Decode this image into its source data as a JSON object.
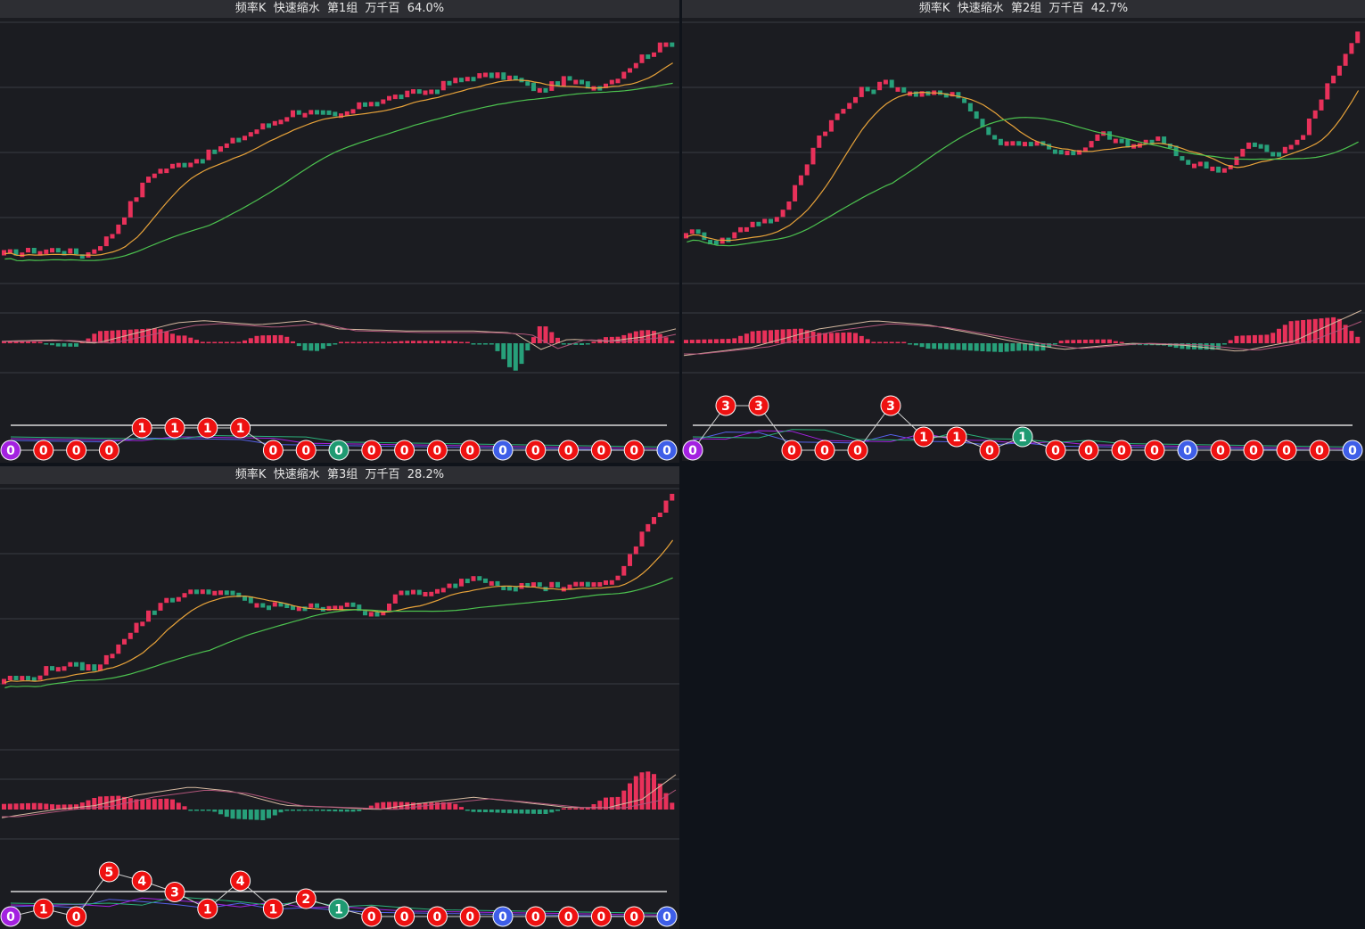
{
  "theme": {
    "panel_bg": "#1b1c21",
    "title_bg": "#2d2e33",
    "up_color": "#e8315a",
    "down_color": "#27a07a",
    "ma_short_color": "#e8a33a",
    "ma_long_color": "#4cc24f",
    "macd_line1": "#d4b8a0",
    "macd_line2": "#b0557a",
    "baseline_color": "#ffffff",
    "grid_color": "#3a3b42",
    "circle_colors": {
      "red": "#ee1111",
      "green": "#1f9a72",
      "blue": "#3e5ee8",
      "purple": "#a321e0"
    }
  },
  "panels": [
    {
      "title": "频率K  快速缩水  第1组  万千百  64.0%",
      "chart_data": {
        "type": "candlestick",
        "trend": [
          [
            0,
            0.1
          ],
          [
            0.08,
            0.12
          ],
          [
            0.12,
            0.09
          ],
          [
            0.16,
            0.18
          ],
          [
            0.22,
            0.45
          ],
          [
            0.3,
            0.52
          ],
          [
            0.38,
            0.64
          ],
          [
            0.44,
            0.72
          ],
          [
            0.5,
            0.69
          ],
          [
            0.55,
            0.76
          ],
          [
            0.63,
            0.8
          ],
          [
            0.7,
            0.87
          ],
          [
            0.76,
            0.86
          ],
          [
            0.8,
            0.8
          ],
          [
            0.84,
            0.85
          ],
          [
            0.88,
            0.82
          ],
          [
            0.91,
            0.85
          ],
          [
            0.96,
            0.96
          ],
          [
            1.0,
            1.02
          ]
        ],
        "macd_shape": [
          [
            0,
            0.05
          ],
          [
            0.08,
            0.08
          ],
          [
            0.14,
            0.0
          ],
          [
            0.2,
            0.25
          ],
          [
            0.26,
            0.5
          ],
          [
            0.3,
            0.55
          ],
          [
            0.38,
            0.45
          ],
          [
            0.45,
            0.55
          ],
          [
            0.5,
            0.35
          ],
          [
            0.6,
            0.3
          ],
          [
            0.7,
            0.3
          ],
          [
            0.76,
            0.25
          ],
          [
            0.8,
            -0.15
          ],
          [
            0.84,
            0.1
          ],
          [
            0.9,
            0.05
          ],
          [
            0.95,
            0.15
          ],
          [
            1.0,
            0.35
          ]
        ],
        "circles": [
          {
            "label": "0",
            "color": "purple",
            "level": 0
          },
          {
            "label": "0",
            "color": "red",
            "level": 0
          },
          {
            "label": "0",
            "color": "red",
            "level": 0
          },
          {
            "label": "0",
            "color": "red",
            "level": 0
          },
          {
            "label": "1",
            "color": "red",
            "level": 1
          },
          {
            "label": "1",
            "color": "red",
            "level": 1
          },
          {
            "label": "1",
            "color": "red",
            "level": 1
          },
          {
            "label": "1",
            "color": "red",
            "level": 1
          },
          {
            "label": "0",
            "color": "red",
            "level": 0
          },
          {
            "label": "0",
            "color": "red",
            "level": 0
          },
          {
            "label": "0",
            "color": "green",
            "level": 0
          },
          {
            "label": "0",
            "color": "red",
            "level": 0
          },
          {
            "label": "0",
            "color": "red",
            "level": 0
          },
          {
            "label": "0",
            "color": "red",
            "level": 0
          },
          {
            "label": "0",
            "color": "red",
            "level": 0
          },
          {
            "label": "0",
            "color": "blue",
            "level": 0
          },
          {
            "label": "0",
            "color": "red",
            "level": 0
          },
          {
            "label": "0",
            "color": "red",
            "level": 0
          },
          {
            "label": "0",
            "color": "red",
            "level": 0
          },
          {
            "label": "0",
            "color": "red",
            "level": 0
          },
          {
            "label": "0",
            "color": "blue",
            "level": 0
          }
        ]
      }
    },
    {
      "title": "频率K  快速缩水  第2组  万千百  42.7%",
      "chart_data": {
        "type": "candlestick",
        "trend": [
          [
            0,
            0.2
          ],
          [
            0.05,
            0.15
          ],
          [
            0.1,
            0.24
          ],
          [
            0.14,
            0.25
          ],
          [
            0.2,
            0.62
          ],
          [
            0.26,
            0.8
          ],
          [
            0.3,
            0.84
          ],
          [
            0.34,
            0.78
          ],
          [
            0.4,
            0.8
          ],
          [
            0.46,
            0.58
          ],
          [
            0.52,
            0.58
          ],
          [
            0.58,
            0.52
          ],
          [
            0.62,
            0.62
          ],
          [
            0.66,
            0.56
          ],
          [
            0.7,
            0.6
          ],
          [
            0.74,
            0.5
          ],
          [
            0.8,
            0.46
          ],
          [
            0.84,
            0.58
          ],
          [
            0.88,
            0.52
          ],
          [
            0.92,
            0.62
          ],
          [
            0.96,
            0.85
          ],
          [
            1.0,
            1.05
          ]
        ],
        "macd_shape": [
          [
            0,
            -0.3
          ],
          [
            0.1,
            -0.1
          ],
          [
            0.2,
            0.35
          ],
          [
            0.28,
            0.55
          ],
          [
            0.36,
            0.45
          ],
          [
            0.44,
            0.2
          ],
          [
            0.5,
            0.0
          ],
          [
            0.56,
            -0.15
          ],
          [
            0.66,
            0.0
          ],
          [
            0.74,
            -0.05
          ],
          [
            0.82,
            -0.2
          ],
          [
            0.9,
            0.05
          ],
          [
            1.0,
            0.8
          ]
        ],
        "circles": [
          {
            "label": "0",
            "color": "purple",
            "level": 0
          },
          {
            "label": "3",
            "color": "red",
            "level": 2
          },
          {
            "label": "3",
            "color": "red",
            "level": 2
          },
          {
            "label": "0",
            "color": "red",
            "level": 0
          },
          {
            "label": "0",
            "color": "red",
            "level": 0
          },
          {
            "label": "0",
            "color": "red",
            "level": 0
          },
          {
            "label": "3",
            "color": "red",
            "level": 2
          },
          {
            "label": "1",
            "color": "red",
            "level": 0.6
          },
          {
            "label": "1",
            "color": "red",
            "level": 0.6
          },
          {
            "label": "0",
            "color": "red",
            "level": 0
          },
          {
            "label": "1",
            "color": "green",
            "level": 0.6
          },
          {
            "label": "0",
            "color": "red",
            "level": 0
          },
          {
            "label": "0",
            "color": "red",
            "level": 0
          },
          {
            "label": "0",
            "color": "red",
            "level": 0
          },
          {
            "label": "0",
            "color": "red",
            "level": 0
          },
          {
            "label": "0",
            "color": "blue",
            "level": 0
          },
          {
            "label": "0",
            "color": "red",
            "level": 0
          },
          {
            "label": "0",
            "color": "red",
            "level": 0
          },
          {
            "label": "0",
            "color": "red",
            "level": 0
          },
          {
            "label": "0",
            "color": "red",
            "level": 0
          },
          {
            "label": "0",
            "color": "blue",
            "level": 0
          }
        ]
      }
    },
    {
      "title": "频率K  快速缩水  第3组  万千百  28.2%",
      "chart_data": {
        "type": "candlestick",
        "trend": [
          [
            0,
            0.28
          ],
          [
            0.04,
            0.28
          ],
          [
            0.08,
            0.34
          ],
          [
            0.14,
            0.32
          ],
          [
            0.18,
            0.46
          ],
          [
            0.24,
            0.62
          ],
          [
            0.3,
            0.66
          ],
          [
            0.34,
            0.64
          ],
          [
            0.38,
            0.6
          ],
          [
            0.44,
            0.58
          ],
          [
            0.5,
            0.6
          ],
          [
            0.56,
            0.56
          ],
          [
            0.6,
            0.66
          ],
          [
            0.64,
            0.64
          ],
          [
            0.7,
            0.72
          ],
          [
            0.76,
            0.68
          ],
          [
            0.82,
            0.68
          ],
          [
            0.88,
            0.68
          ],
          [
            0.92,
            0.72
          ],
          [
            0.96,
            0.92
          ],
          [
            1.0,
            1.08
          ]
        ],
        "macd_shape": [
          [
            0,
            -0.2
          ],
          [
            0.08,
            0.0
          ],
          [
            0.14,
            0.1
          ],
          [
            0.2,
            0.35
          ],
          [
            0.28,
            0.55
          ],
          [
            0.34,
            0.45
          ],
          [
            0.42,
            0.1
          ],
          [
            0.5,
            0.05
          ],
          [
            0.56,
            0.0
          ],
          [
            0.62,
            0.15
          ],
          [
            0.7,
            0.3
          ],
          [
            0.76,
            0.2
          ],
          [
            0.84,
            0.05
          ],
          [
            0.9,
            0.05
          ],
          [
            0.95,
            0.25
          ],
          [
            1.0,
            0.85
          ]
        ],
        "circles": [
          {
            "label": "0",
            "color": "purple",
            "level": 0
          },
          {
            "label": "1",
            "color": "red",
            "level": 0.35
          },
          {
            "label": "0",
            "color": "red",
            "level": 0
          },
          {
            "label": "5",
            "color": "red",
            "level": 2.0
          },
          {
            "label": "4",
            "color": "red",
            "level": 1.6
          },
          {
            "label": "3",
            "color": "red",
            "level": 1.1
          },
          {
            "label": "1",
            "color": "red",
            "level": 0.35
          },
          {
            "label": "4",
            "color": "red",
            "level": 1.6
          },
          {
            "label": "1",
            "color": "red",
            "level": 0.35
          },
          {
            "label": "2",
            "color": "red",
            "level": 0.8
          },
          {
            "label": "1",
            "color": "green",
            "level": 0.35
          },
          {
            "label": "0",
            "color": "red",
            "level": 0
          },
          {
            "label": "0",
            "color": "red",
            "level": 0
          },
          {
            "label": "0",
            "color": "red",
            "level": 0
          },
          {
            "label": "0",
            "color": "red",
            "level": 0
          },
          {
            "label": "0",
            "color": "blue",
            "level": 0
          },
          {
            "label": "0",
            "color": "red",
            "level": 0
          },
          {
            "label": "0",
            "color": "red",
            "level": 0
          },
          {
            "label": "0",
            "color": "red",
            "level": 0
          },
          {
            "label": "0",
            "color": "red",
            "level": 0
          },
          {
            "label": "0",
            "color": "blue",
            "level": 0
          }
        ]
      }
    }
  ]
}
